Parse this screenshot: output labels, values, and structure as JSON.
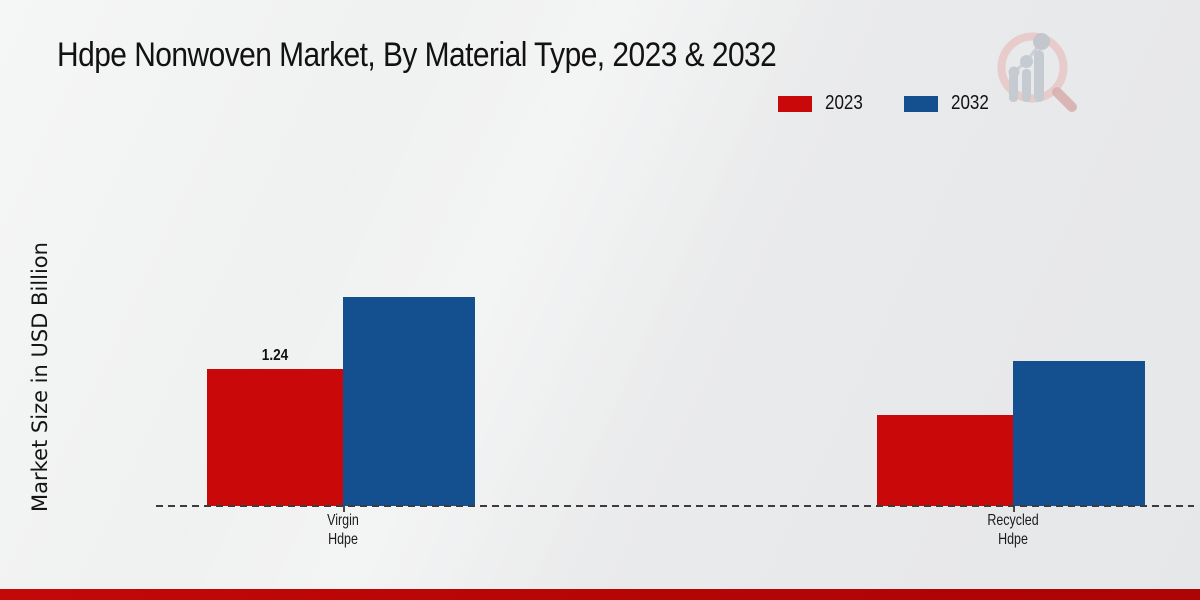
{
  "page": {
    "title": "Hdpe Nonwoven Market, By Material Type, 2023 & 2032"
  },
  "chart_data": {
    "type": "bar",
    "title": "Hdpe Nonwoven Market, By Material Type, 2023 & 2032",
    "xlabel": "",
    "ylabel": "Market Size in USD Billion",
    "categories": [
      "Virgin\nHdpe",
      "Recycled\nHdpe"
    ],
    "series": [
      {
        "name": "2023",
        "color": "#c90909",
        "values": [
          1.24,
          0.82
        ],
        "value_labels": [
          "1.24",
          ""
        ]
      },
      {
        "name": "2032",
        "color": "#14508f",
        "values": [
          1.89,
          1.31
        ],
        "value_labels": [
          "",
          ""
        ]
      }
    ],
    "ylim": [
      0,
      2.1
    ],
    "grid": false,
    "legend_position": "upper-right",
    "baseline_style": "dashed",
    "shown_value_labels_note": "1.24"
  },
  "branding": {
    "logo_icon": "magnifier-bar-chart-logo",
    "logo_ring_color": "#e7c6c6",
    "logo_bar_color": "#c6cad1",
    "footer_bar_color": "#b40505"
  }
}
